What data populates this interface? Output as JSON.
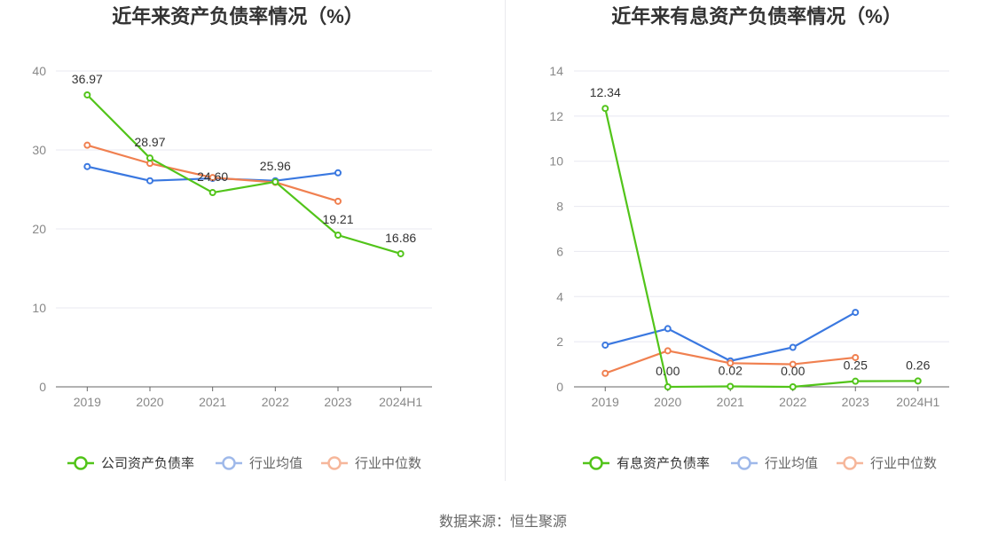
{
  "source": "数据来源：恒生聚源",
  "chart_data": [
    {
      "type": "line",
      "title": "近年来资产负债率情况（%）",
      "categories": [
        "2019",
        "2020",
        "2021",
        "2022",
        "2023",
        "2024H1"
      ],
      "ylim": [
        0,
        40
      ],
      "yticks": [
        0,
        10,
        20,
        30,
        40
      ],
      "grid": true,
      "legend_position": "bottom",
      "series": [
        {
          "name": "公司资产负债率",
          "color": "#52c41a",
          "values": [
            36.97,
            28.97,
            24.6,
            25.96,
            19.21,
            16.86
          ],
          "labels": [
            "36.97",
            "28.97",
            "24.60",
            "25.96",
            "19.21",
            "16.86"
          ]
        },
        {
          "name": "行业均值",
          "color": "#3a78e0",
          "values": [
            27.9,
            26.1,
            26.4,
            26.1,
            27.1,
            null
          ]
        },
        {
          "name": "行业中位数",
          "color": "#f08050",
          "values": [
            30.6,
            28.3,
            26.5,
            25.9,
            23.5,
            null
          ]
        }
      ]
    },
    {
      "type": "line",
      "title": "近年来有息资产负债率情况（%）",
      "categories": [
        "2019",
        "2020",
        "2021",
        "2022",
        "2023",
        "2024H1"
      ],
      "ylim": [
        0,
        14
      ],
      "yticks": [
        0,
        2,
        4,
        6,
        8,
        10,
        12,
        14
      ],
      "grid": true,
      "legend_position": "bottom",
      "series": [
        {
          "name": "有息资产负债率",
          "color": "#52c41a",
          "values": [
            12.34,
            0.0,
            0.02,
            0.0,
            0.25,
            0.26
          ],
          "labels": [
            "12.34",
            "0.00",
            "0.02",
            "0.00",
            "0.25",
            "0.26"
          ]
        },
        {
          "name": "行业均值",
          "color": "#3a78e0",
          "values": [
            1.85,
            2.58,
            1.15,
            1.75,
            3.3,
            null
          ]
        },
        {
          "name": "行业中位数",
          "color": "#f08050",
          "values": [
            0.6,
            1.6,
            1.05,
            1.0,
            1.3,
            null
          ]
        }
      ]
    }
  ]
}
